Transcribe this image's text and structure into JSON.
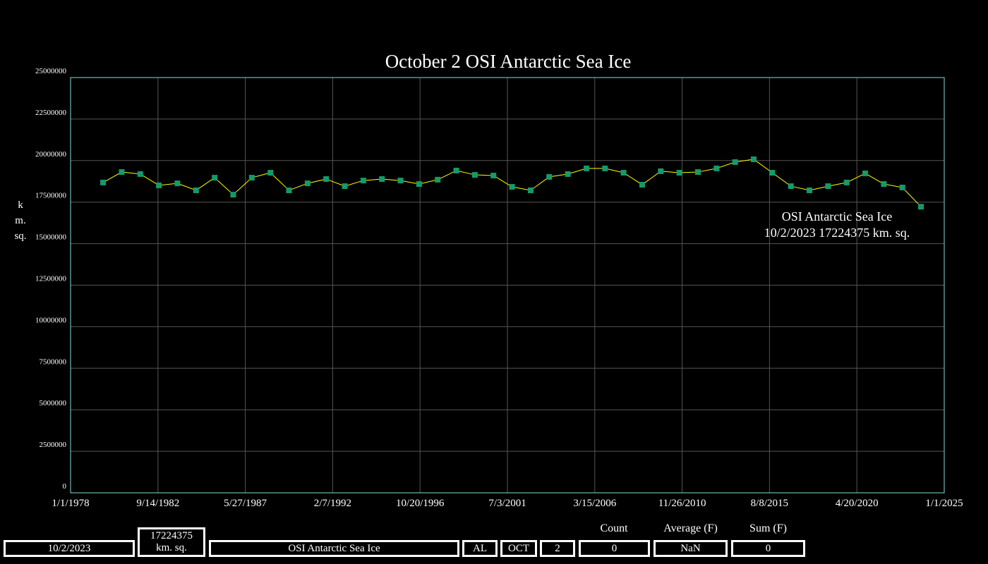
{
  "chart_data": {
    "type": "line",
    "title": "October 2 OSI Antarctic Sea Ice",
    "ylabel": "km. sq.",
    "x": [
      "10/2/1979",
      "10/2/1980",
      "10/2/1981",
      "10/2/1982",
      "10/2/1983",
      "10/2/1984",
      "10/2/1985",
      "10/2/1986",
      "10/2/1987",
      "10/2/1988",
      "10/2/1989",
      "10/2/1990",
      "10/2/1991",
      "10/2/1992",
      "10/2/1993",
      "10/2/1994",
      "10/2/1995",
      "10/2/1996",
      "10/2/1997",
      "10/2/1998",
      "10/2/1999",
      "10/2/2000",
      "10/2/2001",
      "10/2/2002",
      "10/2/2003",
      "10/2/2004",
      "10/2/2005",
      "10/2/2006",
      "10/2/2007",
      "10/2/2008",
      "10/2/2009",
      "10/2/2010",
      "10/2/2011",
      "10/2/2012",
      "10/2/2013",
      "10/2/2014",
      "10/2/2015",
      "10/2/2016",
      "10/2/2017",
      "10/2/2018",
      "10/2/2019",
      "10/2/2020",
      "10/2/2021",
      "10/2/2022",
      "10/2/2023"
    ],
    "series": [
      {
        "name": "OSI Antarctic Sea Ice",
        "color": "#ffff00",
        "marker_color": "#159a6a",
        "values": [
          18680000,
          19310000,
          19190000,
          18510000,
          18630000,
          18210000,
          18970000,
          17950000,
          18970000,
          19270000,
          18210000,
          18630000,
          18890000,
          18460000,
          18800000,
          18890000,
          18800000,
          18590000,
          18850000,
          19400000,
          19140000,
          19100000,
          18420000,
          18210000,
          19020000,
          19190000,
          19530000,
          19530000,
          19270000,
          18550000,
          19360000,
          19270000,
          19310000,
          19530000,
          19910000,
          20080000,
          19270000,
          18460000,
          18210000,
          18460000,
          18680000,
          19230000,
          18590000,
          18380000,
          17224375
        ]
      }
    ],
    "xlim": [
      "1/1/1978",
      "1/1/2025"
    ],
    "xticks": [
      "1/1/1978",
      "9/14/1982",
      "5/27/1987",
      "2/7/1992",
      "10/20/1996",
      "7/3/2001",
      "3/15/2006",
      "11/26/2010",
      "8/8/2015",
      "4/20/2020",
      "1/1/2025"
    ],
    "ylim": [
      0,
      25000000
    ],
    "yticks": [
      0,
      2500000,
      5000000,
      7500000,
      10000000,
      12500000,
      15000000,
      17500000,
      20000000,
      22500000,
      25000000
    ],
    "grid": true,
    "annotation": {
      "line1": "OSI Antarctic Sea Ice",
      "line2": "10/2/2023 17224375 km. sq."
    }
  },
  "footer": {
    "date": "10/2/2023",
    "extent": "17224375 km. sq.",
    "dataset": "OSI Antarctic Sea Ice",
    "region": "AL",
    "month": "OCT",
    "day": 2,
    "stats": [
      {
        "label": "Count",
        "value": 0
      },
      {
        "label": "Average (F)",
        "value": "NaN"
      },
      {
        "label": "Sum (F)",
        "value": 0
      }
    ]
  }
}
